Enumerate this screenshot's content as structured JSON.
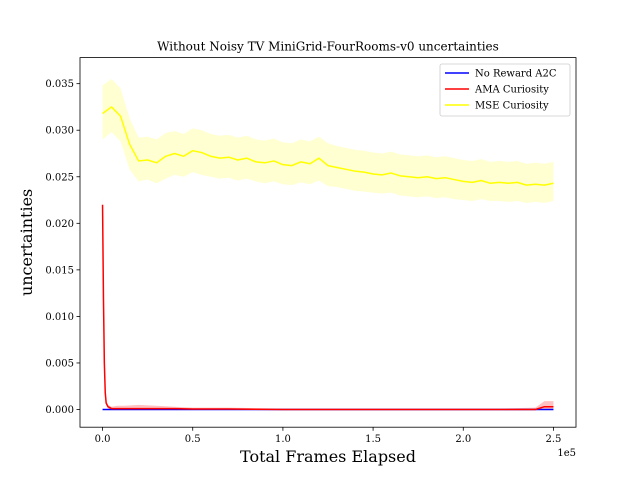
{
  "chart_data": {
    "type": "line",
    "title": "Without Noisy TV MiniGrid-FourRooms-v0 uncertainties",
    "xlabel": "Total Frames Elapsed",
    "ylabel": "uncertainties",
    "x_offset_label": "1e5",
    "xlim": [
      -0.125,
      2.625
    ],
    "ylim": [
      -0.0019,
      0.0378
    ],
    "x_ticks": [
      0.0,
      0.5,
      1.0,
      1.5,
      2.0,
      2.5
    ],
    "x_tick_labels": [
      "0.0",
      "0.5",
      "1.0",
      "1.5",
      "2.0",
      "2.5"
    ],
    "y_ticks": [
      0.0,
      0.005,
      0.01,
      0.015,
      0.02,
      0.025,
      0.03,
      0.035
    ],
    "y_tick_labels": [
      "0.000",
      "0.005",
      "0.010",
      "0.015",
      "0.020",
      "0.025",
      "0.030",
      "0.035"
    ],
    "grid": false,
    "legend_position": "top-right",
    "series": [
      {
        "name": "No Reward A2C",
        "color": "#0000ff",
        "x": [
          0.0,
          0.25,
          0.5,
          0.75,
          1.0,
          1.25,
          1.5,
          1.75,
          2.0,
          2.25,
          2.5
        ],
        "y": [
          0.0,
          0.0,
          0.0,
          0.0,
          0.0,
          0.0,
          0.0,
          0.0,
          0.0,
          0.0,
          0.0
        ]
      },
      {
        "name": "AMA Curiosity",
        "color": "#ff0000",
        "band_color": "#ff9999",
        "x": [
          0.0,
          0.005,
          0.01,
          0.015,
          0.02,
          0.03,
          0.05,
          0.08,
          0.12,
          0.2,
          0.3,
          0.4,
          0.5,
          0.7,
          1.0,
          1.3,
          1.6,
          1.9,
          2.2,
          2.4,
          2.45,
          2.5
        ],
        "y": [
          0.022,
          0.012,
          0.005,
          0.0018,
          0.0007,
          0.0003,
          0.0001,
          0.0001,
          0.0001,
          0.0001,
          0.0001,
          0.0001,
          5e-05,
          5e-05,
          0.0,
          0.0,
          0.0,
          0.0,
          0.0,
          0.0,
          0.0003,
          0.0003
        ],
        "lower": [
          0.021,
          0.011,
          0.0045,
          0.0015,
          0.0005,
          0.0001,
          0.0,
          0.0,
          0.0,
          0.0,
          0.0,
          0.0,
          0.0,
          0.0,
          0.0,
          0.0,
          0.0,
          0.0,
          0.0,
          0.0,
          0.0,
          0.0
        ],
        "upper": [
          0.023,
          0.013,
          0.0055,
          0.0022,
          0.001,
          0.0005,
          0.0003,
          0.0004,
          0.0004,
          0.0005,
          0.0004,
          0.0003,
          0.0002,
          0.0002,
          0.0001,
          0.0001,
          0.0001,
          0.0001,
          0.0001,
          0.0002,
          0.0009,
          0.0009
        ]
      },
      {
        "name": "MSE Curiosity",
        "color": "#ffff00",
        "band_color": "#ffffb3",
        "x": [
          0.0,
          0.05,
          0.1,
          0.15,
          0.2,
          0.25,
          0.3,
          0.35,
          0.4,
          0.45,
          0.5,
          0.55,
          0.6,
          0.65,
          0.7,
          0.75,
          0.8,
          0.85,
          0.9,
          0.95,
          1.0,
          1.05,
          1.1,
          1.15,
          1.2,
          1.25,
          1.3,
          1.35,
          1.4,
          1.45,
          1.5,
          1.55,
          1.6,
          1.65,
          1.7,
          1.75,
          1.8,
          1.85,
          1.9,
          1.95,
          2.0,
          2.05,
          2.1,
          2.15,
          2.2,
          2.25,
          2.3,
          2.35,
          2.4,
          2.45,
          2.5
        ],
        "y": [
          0.0318,
          0.0325,
          0.0315,
          0.0285,
          0.0267,
          0.0268,
          0.0265,
          0.0272,
          0.0275,
          0.0272,
          0.0278,
          0.0276,
          0.0272,
          0.027,
          0.0271,
          0.0268,
          0.027,
          0.0266,
          0.0265,
          0.0267,
          0.0263,
          0.0262,
          0.0266,
          0.0264,
          0.027,
          0.0262,
          0.026,
          0.0258,
          0.0256,
          0.0255,
          0.0253,
          0.0252,
          0.0254,
          0.0251,
          0.025,
          0.0249,
          0.025,
          0.0248,
          0.0249,
          0.0247,
          0.0245,
          0.0244,
          0.0246,
          0.0243,
          0.0244,
          0.0243,
          0.0244,
          0.0241,
          0.0242,
          0.0241,
          0.0243
        ],
        "lower": [
          0.029,
          0.0298,
          0.0288,
          0.0258,
          0.0245,
          0.0247,
          0.0243,
          0.0248,
          0.0252,
          0.025,
          0.0255,
          0.0252,
          0.025,
          0.0248,
          0.0249,
          0.0246,
          0.0248,
          0.0245,
          0.0243,
          0.0245,
          0.0242,
          0.0241,
          0.0244,
          0.0242,
          0.0246,
          0.024,
          0.0239,
          0.0237,
          0.0235,
          0.0234,
          0.0233,
          0.0232,
          0.0233,
          0.023,
          0.0229,
          0.0228,
          0.0229,
          0.0227,
          0.0228,
          0.0226,
          0.0225,
          0.0224,
          0.0226,
          0.0224,
          0.0224,
          0.0223,
          0.0224,
          0.0222,
          0.0223,
          0.0222,
          0.0224
        ],
        "upper": [
          0.0348,
          0.0355,
          0.0345,
          0.0313,
          0.0292,
          0.0293,
          0.029,
          0.0297,
          0.0299,
          0.0296,
          0.0302,
          0.03,
          0.0296,
          0.0294,
          0.0295,
          0.0292,
          0.0294,
          0.029,
          0.0289,
          0.0291,
          0.0287,
          0.0286,
          0.029,
          0.0288,
          0.0293,
          0.0286,
          0.0283,
          0.0281,
          0.0279,
          0.0278,
          0.0276,
          0.0275,
          0.0277,
          0.0274,
          0.0273,
          0.0272,
          0.0273,
          0.0271,
          0.0272,
          0.027,
          0.0268,
          0.0267,
          0.0269,
          0.0266,
          0.0267,
          0.0266,
          0.0267,
          0.0264,
          0.0265,
          0.0264,
          0.0266
        ]
      }
    ]
  }
}
